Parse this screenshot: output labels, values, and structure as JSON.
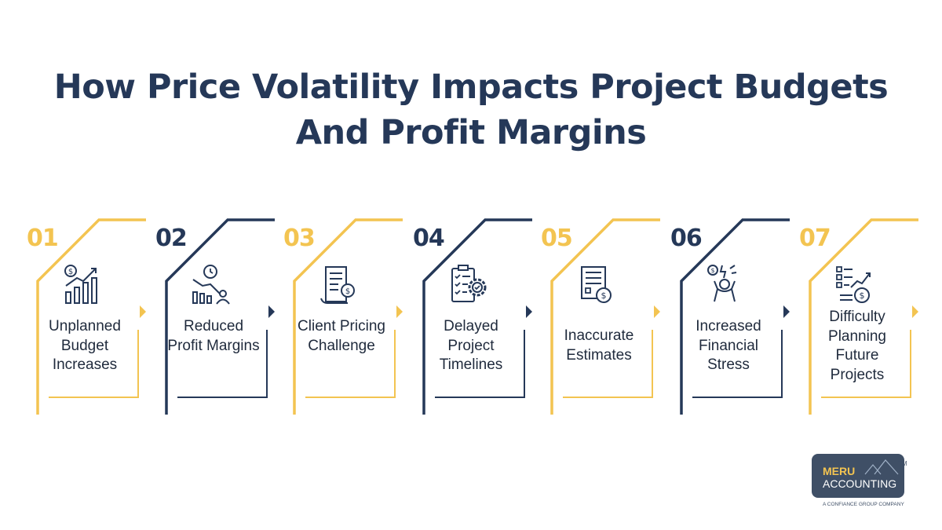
{
  "title_line1": "How Price Volatility Impacts Project Budgets",
  "title_line2": "And Profit Margins",
  "colors": {
    "gold": "#f3c451",
    "navy": "#253858",
    "text": "#1f2a3c"
  },
  "steps": [
    {
      "number": "01",
      "label": "Unplanned Budget Increases",
      "color": "gold",
      "icon": "money-growth-chart-icon"
    },
    {
      "number": "02",
      "label": "Reduced Profit Margins",
      "color": "navy",
      "icon": "declining-chart-person-icon"
    },
    {
      "number": "03",
      "label": "Client Pricing Challenge",
      "color": "gold",
      "icon": "invoice-dollar-icon"
    },
    {
      "number": "04",
      "label": "Delayed Project Timelines",
      "color": "navy",
      "icon": "checklist-gear-icon"
    },
    {
      "number": "05",
      "label": "Inaccurate Estimates",
      "color": "gold",
      "icon": "estimate-document-dollar-icon"
    },
    {
      "number": "06",
      "label": "Increased Financial Stress",
      "color": "navy",
      "icon": "stressed-person-money-icon"
    },
    {
      "number": "07",
      "label": "Difficulty Planning Future Projects",
      "color": "gold",
      "icon": "planning-chart-coin-icon"
    }
  ],
  "logo": {
    "line1": "MERU",
    "line2": "ACCOUNTING",
    "trademark": "TM",
    "tagline": "A CONFIANCE GROUP COMPANY"
  }
}
